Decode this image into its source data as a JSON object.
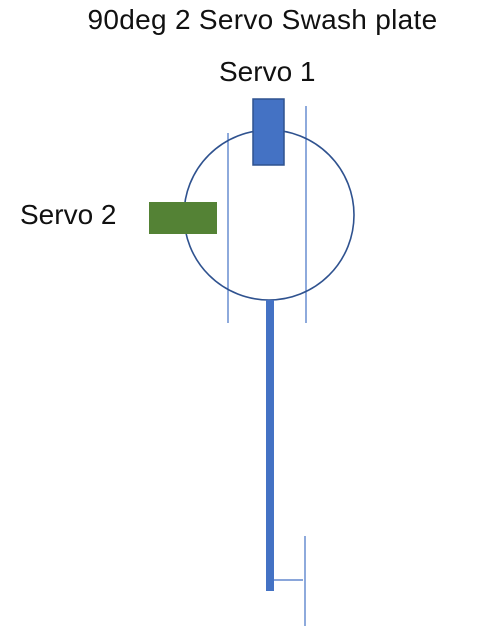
{
  "diagram": {
    "title": "90deg 2 Servo Swash plate",
    "servo1_label": "Servo 1",
    "servo2_label": "Servo 2",
    "colors": {
      "plate_outline": "#2f528f",
      "servo1": "#4472c4",
      "servo2": "#548235",
      "rod": "#4472c4",
      "guide_lines": "#4472c4",
      "text": "#111111"
    }
  }
}
